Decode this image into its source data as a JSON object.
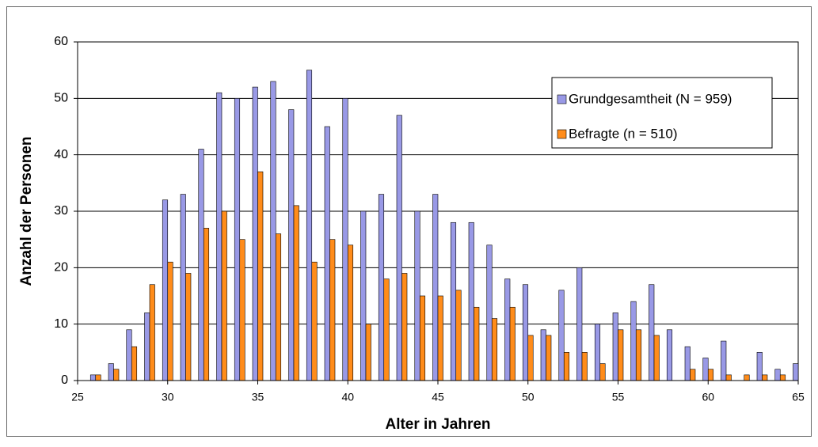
{
  "chart_data": {
    "type": "bar",
    "x_label": "Alter in Jahren",
    "y_label": "Anzahl der Personen",
    "x": [
      26,
      27,
      28,
      29,
      30,
      31,
      32,
      33,
      34,
      35,
      36,
      37,
      38,
      39,
      40,
      41,
      42,
      43,
      44,
      45,
      46,
      47,
      48,
      49,
      50,
      51,
      52,
      53,
      54,
      55,
      56,
      57,
      58,
      59,
      60,
      61,
      62,
      63,
      64,
      65
    ],
    "series": [
      {
        "name": "Grundgesamtheit (N = 959)",
        "color": "#9999e6",
        "values": [
          1,
          3,
          9,
          12,
          32,
          33,
          41,
          51,
          50,
          52,
          53,
          48,
          55,
          45,
          50,
          30,
          33,
          47,
          30,
          33,
          28,
          28,
          24,
          18,
          17,
          9,
          16,
          20,
          10,
          12,
          14,
          17,
          9,
          6,
          4,
          7,
          0,
          5,
          2,
          3
        ]
      },
      {
        "name": "Befragte (n = 510)",
        "color": "#ff8c1a",
        "values": [
          1,
          2,
          6,
          17,
          21,
          19,
          27,
          30,
          25,
          37,
          26,
          31,
          21,
          25,
          24,
          10,
          18,
          19,
          15,
          15,
          16,
          13,
          11,
          13,
          8,
          8,
          5,
          5,
          3,
          9,
          9,
          8,
          0,
          2,
          2,
          1,
          1,
          1,
          1,
          0
        ]
      }
    ],
    "xlim": [
      25,
      65
    ],
    "xticks": [
      25,
      30,
      35,
      40,
      45,
      50,
      55,
      60,
      65
    ],
    "ylim": [
      0,
      60
    ],
    "yticks": [
      0,
      10,
      20,
      30,
      40,
      50,
      60
    ],
    "grid": true,
    "legend_position": "upper right"
  }
}
